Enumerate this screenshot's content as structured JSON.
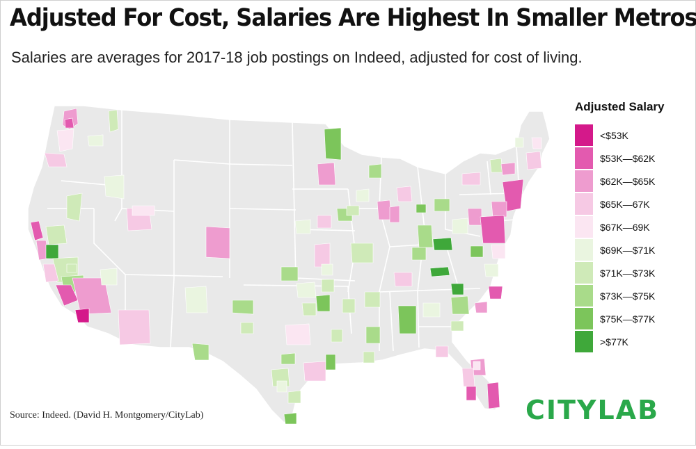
{
  "title": "Adjusted For Cost, Salaries Are Highest In Smaller Metros",
  "subtitle": "Salaries are averages for 2017-18 job postings on Indeed, adjusted for cost of living.",
  "legend": {
    "title": "Adjusted Salary",
    "items": [
      {
        "label": "<$53K",
        "color": "#d4198a"
      },
      {
        "label": "$53K—$62K",
        "color": "#e35aaf"
      },
      {
        "label": "$62K—$65K",
        "color": "#ee9ccf"
      },
      {
        "label": "$65K—67K",
        "color": "#f6c9e4"
      },
      {
        "label": "$67K—69K",
        "color": "#fbe6f2"
      },
      {
        "label": "$69K—$71K",
        "color": "#eaf5e0"
      },
      {
        "label": "$71K—$73K",
        "color": "#cfeab8"
      },
      {
        "label": "$73K—$75K",
        "color": "#a9db8a"
      },
      {
        "label": "$75K—$77K",
        "color": "#7cc55b"
      },
      {
        "label": ">$77K",
        "color": "#3fa83a"
      }
    ]
  },
  "source": "Source: Indeed. (David H. Montgomery/CityLab)",
  "logo": "CITYLAB",
  "colors": {
    "land": "#e9e9e9",
    "border": "#ffffff"
  }
}
